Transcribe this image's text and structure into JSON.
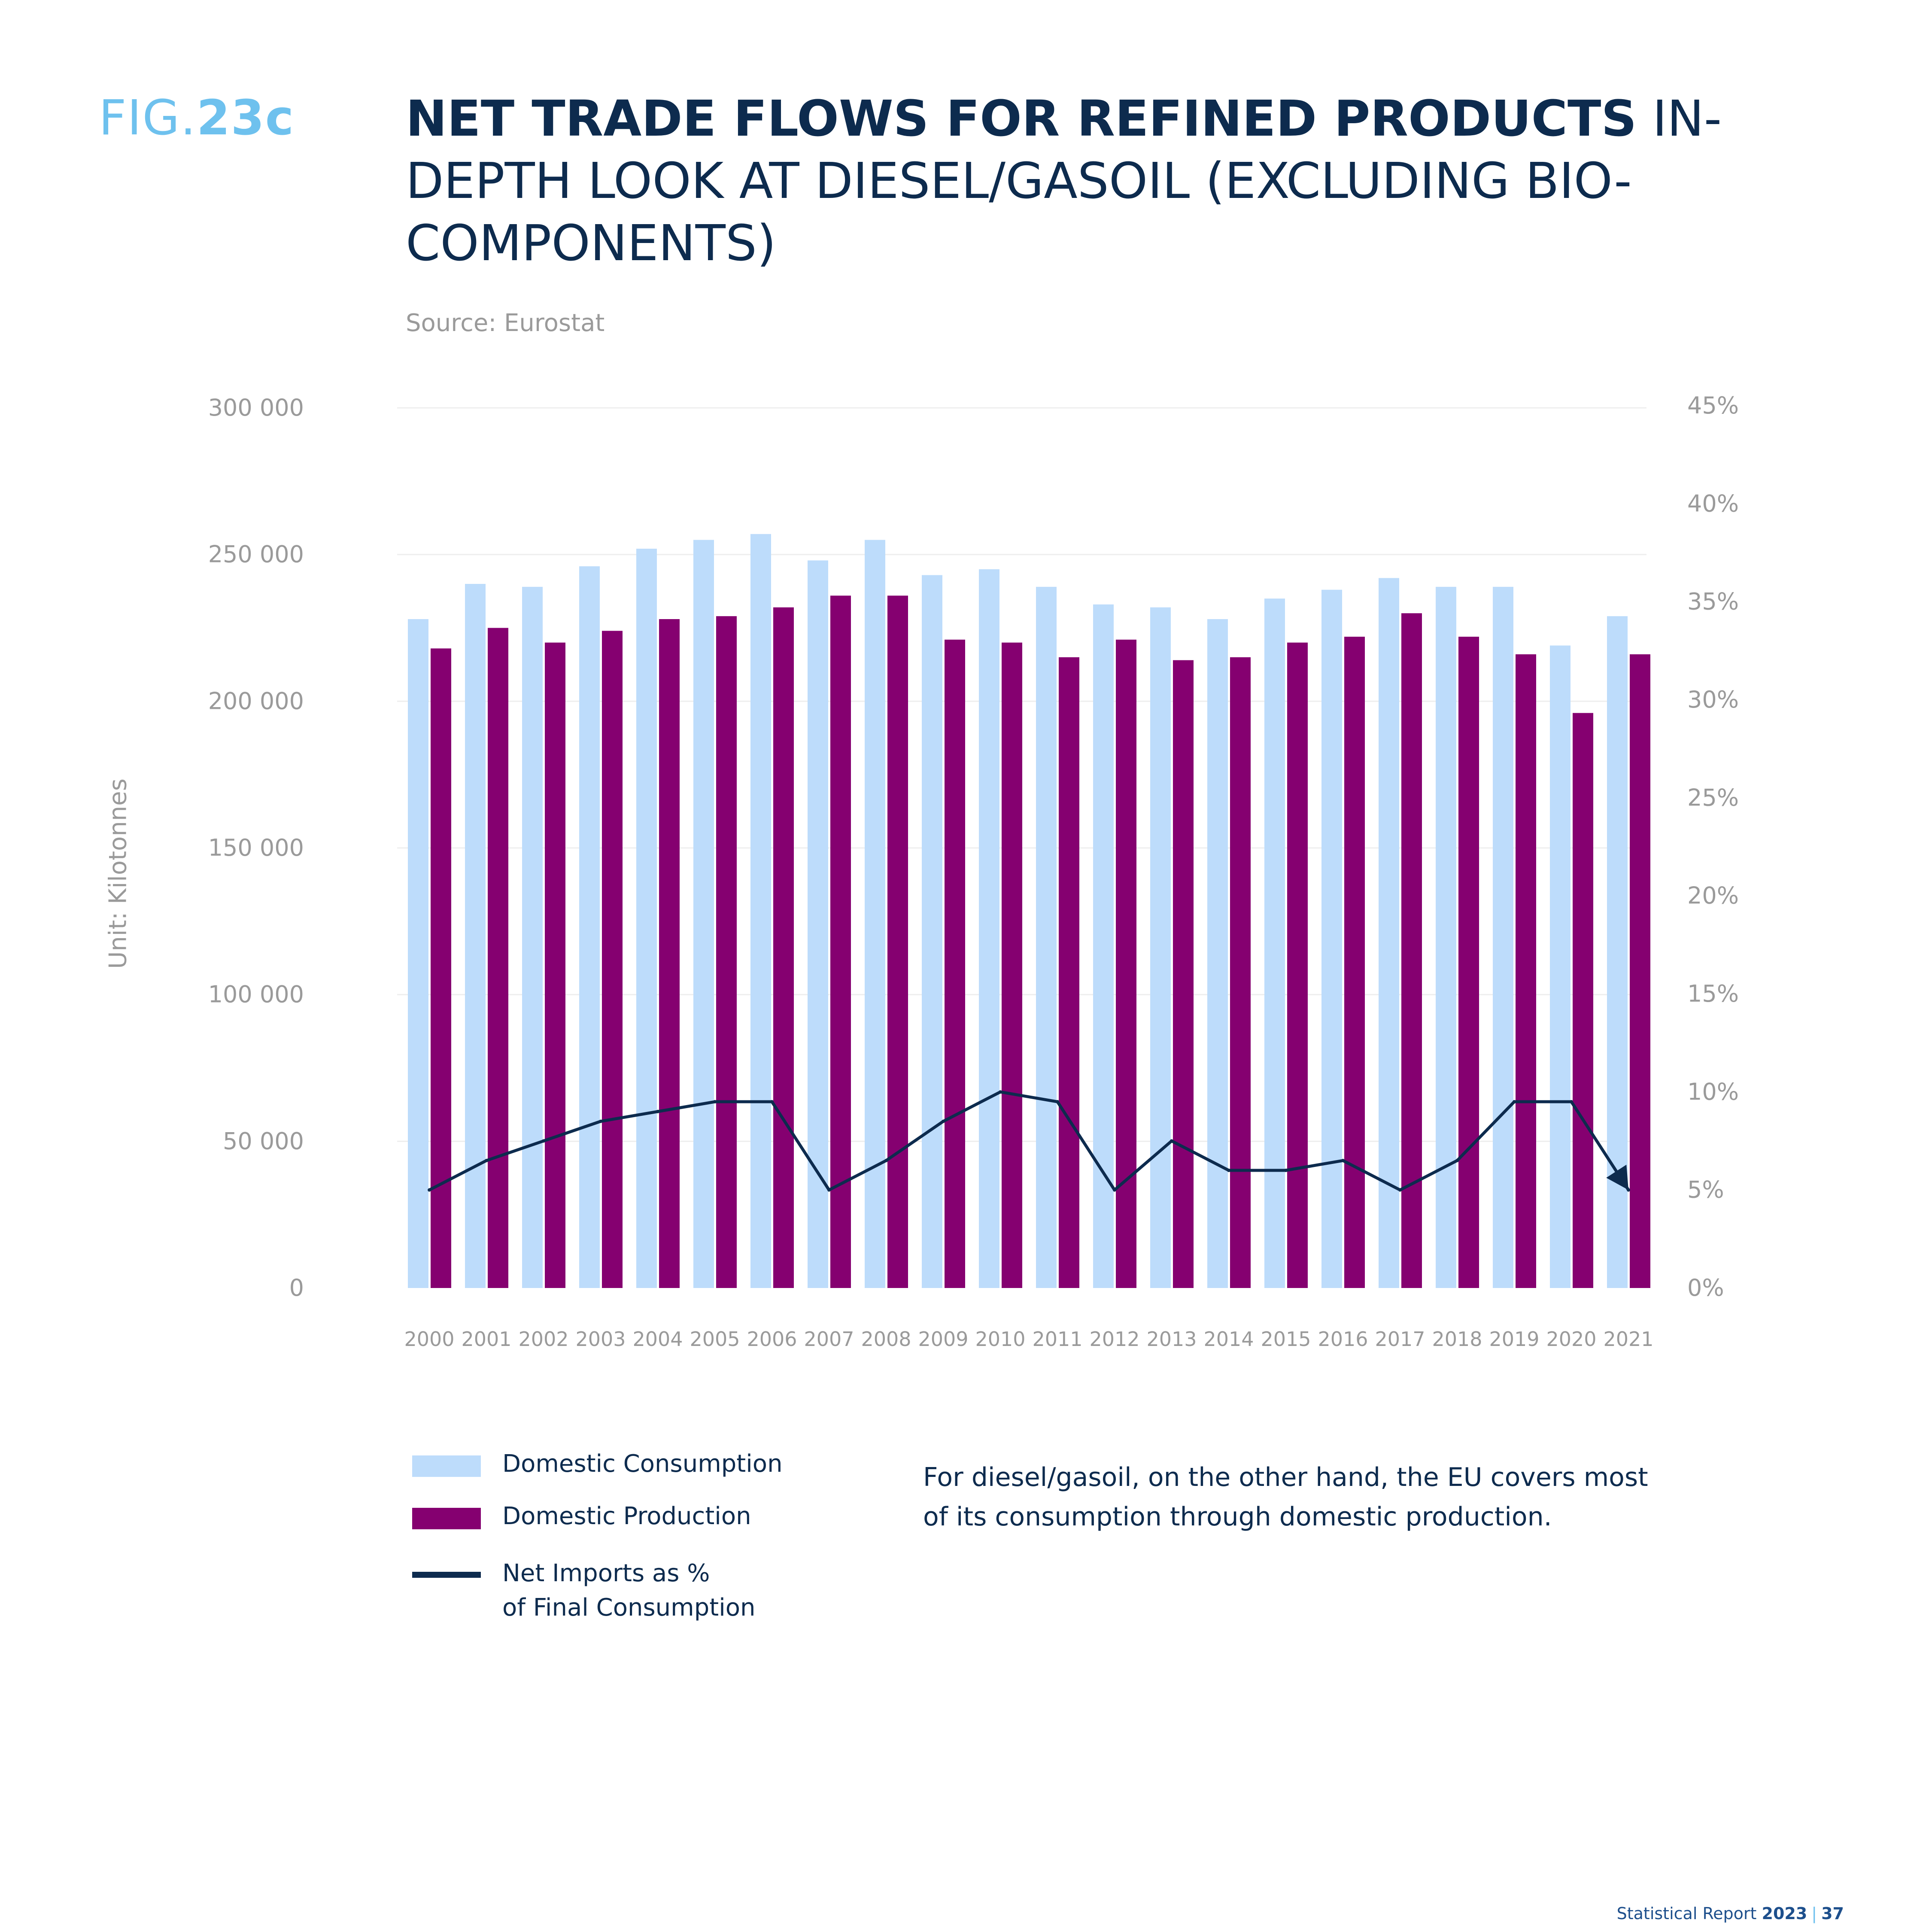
{
  "figure": {
    "prefix": "FIG.",
    "number": "23c"
  },
  "title": {
    "bold": "NET TRADE FLOWS FOR REFINED PRODUCTS",
    "regular": " IN-DEPTH LOOK AT DIESEL/GASOIL (EXCLUDING BIO-COMPONENTS)"
  },
  "source": "Source: Eurostat",
  "note": "For diesel/gasoil, on the other hand, the EU covers most of its consumption through domestic production.",
  "footer": {
    "label": "Statistical Report",
    "year": "2023",
    "separator": "|",
    "page": "37"
  },
  "colors": {
    "consumption": "#bddcfb",
    "production": "#850070",
    "line": "#0d2b4e",
    "grid": "#eeeeee",
    "axis_text": "#9a9a9a"
  },
  "legend": [
    {
      "label": "Domestic Consumption",
      "type": "bar",
      "color": "#bddcfb"
    },
    {
      "label": "Domestic Production",
      "type": "bar",
      "color": "#850070"
    },
    {
      "label": "Net Imports as %\nof Final Consumption",
      "type": "line",
      "color": "#0d2b4e"
    }
  ],
  "chart_data": {
    "type": "bar",
    "ylabel": "Unit: Kilotonnes",
    "categories": [
      "2000",
      "2001",
      "2002",
      "2003",
      "2004",
      "2005",
      "2006",
      "2007",
      "2008",
      "2009",
      "2010",
      "2011",
      "2012",
      "2013",
      "2014",
      "2015",
      "2016",
      "2017",
      "2018",
      "2019",
      "2020",
      "2021"
    ],
    "ylim": [
      0,
      300000
    ],
    "y_ticks": [
      "0",
      "50 000",
      "100 000",
      "150 000",
      "200 000",
      "250 000",
      "300 000"
    ],
    "y2lim": [
      0,
      45
    ],
    "y2_ticks": [
      "0%",
      "5%",
      "10%",
      "15%",
      "20%",
      "25%",
      "30%",
      "35%",
      "40%",
      "45%"
    ],
    "grid": true,
    "series": [
      {
        "name": "Domestic Consumption",
        "type": "bar",
        "axis": "left",
        "values": [
          228000,
          240000,
          239000,
          246000,
          252000,
          255000,
          257000,
          248000,
          255000,
          243000,
          245000,
          239000,
          233000,
          232000,
          228000,
          235000,
          238000,
          242000,
          239000,
          239000,
          219000,
          229000
        ]
      },
      {
        "name": "Domestic Production",
        "type": "bar",
        "axis": "left",
        "values": [
          218000,
          225000,
          220000,
          224000,
          228000,
          229000,
          232000,
          236000,
          236000,
          221000,
          220000,
          215000,
          221000,
          214000,
          215000,
          220000,
          222000,
          230000,
          222000,
          216000,
          196000,
          216000
        ]
      },
      {
        "name": "Net Imports as % of Final Consumption",
        "type": "line",
        "axis": "right",
        "values": [
          5,
          6.5,
          7.5,
          8.5,
          9,
          9.5,
          9.5,
          5,
          6.5,
          8.5,
          10,
          9.5,
          5,
          7.5,
          6,
          6,
          6.5,
          5,
          6.5,
          9.5,
          9.5,
          5
        ]
      }
    ]
  }
}
